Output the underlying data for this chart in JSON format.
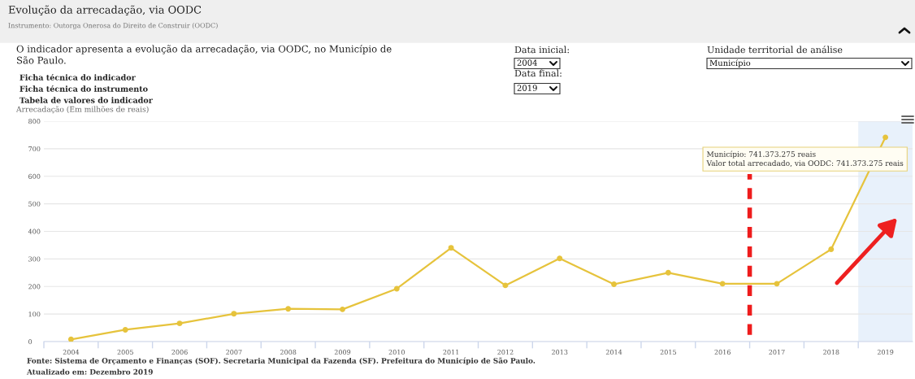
{
  "chart_data": {
    "type": "line",
    "title": "Evolução da arrecadação, via OODC",
    "subtitle": "Instrumento: Outorga Onerosa do Direito de Construir (OODC)",
    "ylabel": "Arrecadação (Em milhões de reais)",
    "x": [
      2004,
      2005,
      2006,
      2007,
      2008,
      2009,
      2010,
      2011,
      2012,
      2013,
      2014,
      2015,
      2016,
      2017,
      2018,
      2019
    ],
    "series": [
      {
        "color": "#e6c33c",
        "values": [
          8,
          43,
          66,
          101,
          119,
          117,
          192,
          340,
          204,
          302,
          208,
          250,
          210,
          210,
          335,
          741.373275
        ]
      }
    ],
    "xlim": [
      2003.5,
      2019.5
    ],
    "xticks": [
      2004,
      2005,
      2006,
      2007,
      2008,
      2009,
      2010,
      2011,
      2012,
      2013,
      2014,
      2015,
      2016,
      2017,
      2018,
      2019,
      {
        "value": 2003.5,
        "label": null
      },
      {
        "value": 2004.5,
        "label": null
      },
      {
        "value": 2005.5,
        "label": null
      },
      {
        "value": 2006.5,
        "label": null
      },
      {
        "value": 2007.5,
        "label": null
      },
      {
        "value": 2008.5,
        "label": null
      },
      {
        "value": 2009.5,
        "label": null
      },
      {
        "value": 2010.5,
        "label": null
      },
      {
        "value": 2011.5,
        "label": null
      },
      {
        "value": 2012.5,
        "label": null
      },
      {
        "value": 2013.5,
        "label": null
      },
      {
        "value": 2014.5,
        "label": null
      },
      {
        "value": 2015.5,
        "label": null
      },
      {
        "value": 2016.5,
        "label": null
      },
      {
        "value": 2017.5,
        "label": null
      },
      {
        "value": 2018.5,
        "label": null
      }
    ],
    "ylim": [
      0,
      800
    ],
    "yticks": [
      0,
      100,
      200,
      300,
      400,
      500,
      600,
      700,
      800
    ],
    "grid": "y",
    "marker": "circle",
    "line_style": "solid",
    "ref_lines": [
      {
        "axis": "x",
        "value": 2016.5,
        "color": "#ee1c1c",
        "line_style": "dashed"
      }
    ],
    "bands": [
      {
        "axis": "x",
        "from": 2018.5,
        "to": 2019.5,
        "color": "#e8f1fb"
      }
    ],
    "annotations": [
      {
        "text": "Município: 741.373.275 reais\nValor total arrecadado, via OODC: 741.373.275 reais",
        "x": 2019,
        "y": 741.373275
      },
      "O indicador apresenta a evolução da arrecadação, via OODC, no Município de\nSão Paulo.",
      "Ficha técnica do indicador",
      "Ficha técnica do instrumento",
      "Tabela de valores do indicador",
      "Data inicial:",
      "2004",
      "Data final:",
      "2019",
      "Unidade territorial de análise",
      "Município",
      "Fonte: Sistema de Orçamento e Finanças (SOF). Secretaria Municipal da Fazenda (SF). Prefeitura do Município de São Paulo.",
      "Atualizado em: Dezembro 2019"
    ]
  }
}
